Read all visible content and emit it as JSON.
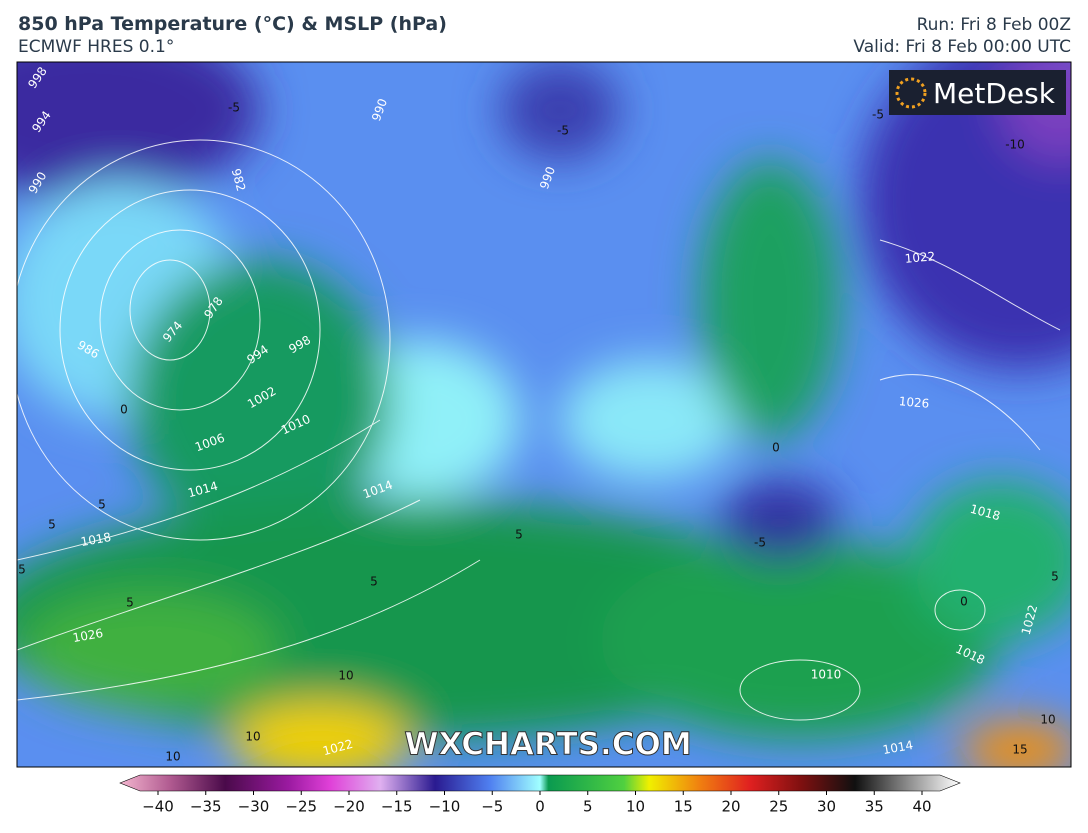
{
  "header": {
    "title": "850 hPa Temperature (°C) & MSLP (hPa)",
    "subtitle": "ECMWF HRES 0.1°",
    "run": "Run: Fri 8 Feb 00Z",
    "valid": "Valid: Fri 8 Feb 00:00 UTC"
  },
  "logo": "MetDesk",
  "watermark": "WXCHARTS.COM",
  "isobar_labels": [
    "998",
    "994",
    "990",
    "990",
    "982",
    "990",
    "978",
    "974",
    "986",
    "994",
    "998",
    "1002",
    "1006",
    "1010",
    "1014",
    "1018",
    "1026",
    "1022",
    "1014",
    "1010",
    "1018",
    "1022",
    "1018",
    "1022",
    "1026",
    "1014"
  ],
  "temperature_labels": [
    "-5",
    "-5",
    "-5",
    "-5",
    "-10",
    "0",
    "0",
    "0",
    "5",
    "5",
    "5",
    "5",
    "5",
    "5",
    "5",
    "10",
    "10",
    "10",
    "10",
    "15"
  ],
  "colorbar": {
    "ticks": [
      "−40",
      "−35",
      "−30",
      "−25",
      "−20",
      "−15",
      "−10",
      "−5",
      "0",
      "5",
      "10",
      "15",
      "20",
      "25",
      "30",
      "35",
      "40"
    ]
  }
}
